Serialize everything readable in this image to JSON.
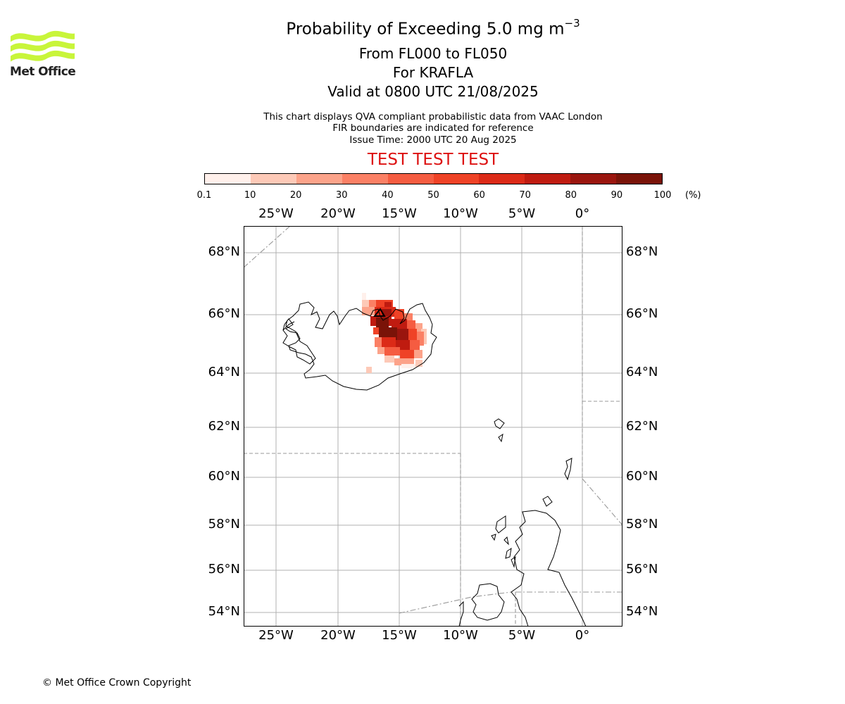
{
  "header": {
    "title_prefix": "Probability of Exceeding 5.0 mg m",
    "title_exponent": "−3",
    "flight_levels": "From FL000 to FL050",
    "volcano": "For KRAFLA",
    "valid_time": "Valid at 0800 UTC 21/08/2025",
    "info_line1": "This chart displays QVA compliant probabilistic data from VAAC London",
    "info_line2": "FIR boundaries are indicated for reference",
    "issue_time": "Issue Time: 2000 UTC 20 Aug 2025",
    "test_banner": "TEST TEST TEST"
  },
  "logo": {
    "text": "Met Office",
    "color": "#c8f53a"
  },
  "colorbar": {
    "ticks": [
      "0.1",
      "10",
      "20",
      "30",
      "40",
      "50",
      "60",
      "70",
      "80",
      "90",
      "100"
    ],
    "unit": "(%)",
    "colors": [
      "#fff0eb",
      "#fdc9b7",
      "#fca38a",
      "#fb8065",
      "#f55c41",
      "#ef4226",
      "#dc2a17",
      "#bf1b10",
      "#9a150e",
      "#7a1308"
    ]
  },
  "axes": {
    "lon_labels": [
      "25°W",
      "20°W",
      "15°W",
      "10°W",
      "5°W",
      "0°"
    ],
    "lat_labels": [
      "68°N",
      "66°N",
      "64°N",
      "62°N",
      "60°N",
      "58°N",
      "56°N",
      "54°N"
    ]
  },
  "footer": {
    "copyright": "© Met Office Crown Copyright"
  }
}
